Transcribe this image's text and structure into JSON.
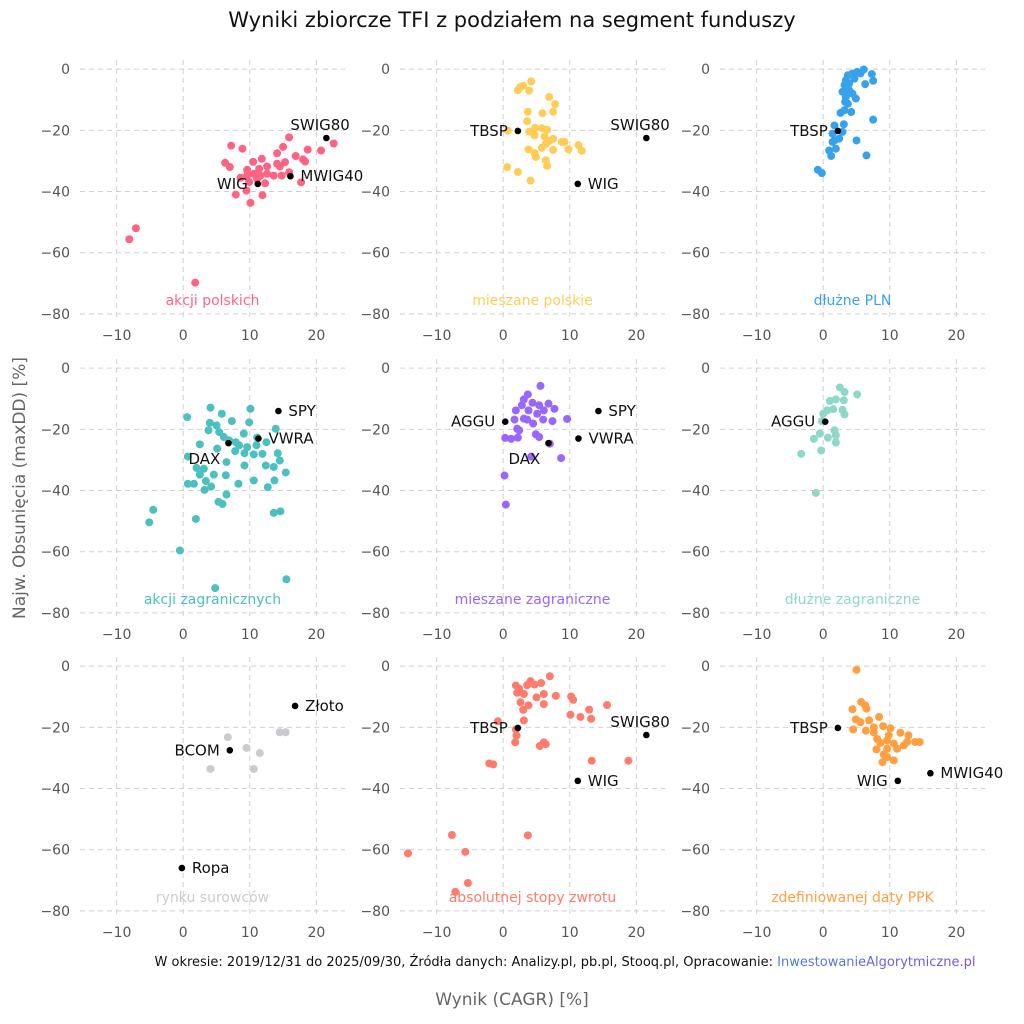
{
  "chart_data": [
    {
      "type": "scatter",
      "title": "akcji polskich",
      "color": "#ff6384",
      "x": [
        7.2,
        8.9,
        15.9,
        15,
        18.7,
        20.7,
        22.6,
        16.9,
        18,
        18.3,
        14.1,
        11.8,
        10.5,
        6.3,
        7,
        9.6,
        11.4,
        12.6,
        14.1,
        14.5,
        15.3,
        15.9,
        14.8,
        13.6,
        12.3,
        9.6,
        8.6,
        9.9,
        17.7,
        7.9,
        9.5,
        10.1,
        11.9,
        10.6,
        11.6,
        12.6,
        11.1,
        -8.1,
        -7.1,
        1.8
      ],
      "y": [
        -25,
        -26,
        -22.3,
        -25.4,
        -26.3,
        -26.6,
        -24.3,
        -28.4,
        -29.5,
        -30.2,
        -27.5,
        -29.3,
        -30.3,
        -30.6,
        -32,
        -32.9,
        -32.6,
        -31.8,
        -30.9,
        -31.8,
        -30.4,
        -33.7,
        -34.8,
        -34.8,
        -37.3,
        -34.8,
        -35.5,
        -36.9,
        -37,
        -41,
        -39.7,
        -43.7,
        -41.2,
        -34.2,
        -34.8,
        -34.2,
        -35.8,
        -55.6,
        -52,
        -69.8
      ],
      "benchmarks": [
        {
          "name": "SWIG80",
          "x": 21.5,
          "y": -22.5,
          "pos": "above"
        },
        {
          "name": "WIG",
          "x": 11.2,
          "y": -37.5,
          "pos": "left"
        },
        {
          "name": "MWIG40",
          "x": 16.1,
          "y": -35,
          "pos": "right"
        }
      ]
    },
    {
      "type": "scatter",
      "title": "mieszane polskie",
      "color": "#ffcd56",
      "x": [
        2.2,
        2.5,
        3,
        4.2,
        3.9,
        6.9,
        7.8,
        7.5,
        5.9,
        3.7,
        3.6,
        0.7,
        3.9,
        4.8,
        5.8,
        6.6,
        4.7,
        6.2,
        7.5,
        8.8,
        9.2,
        6.9,
        5.8,
        3.8,
        4.7,
        4.9,
        7.5,
        9.8,
        11.3,
        11.8,
        6.4,
        6.6,
        0.6,
        2.2,
        4.1,
        6.4
      ],
      "y": [
        -6.9,
        -6,
        -5.4,
        -4,
        -7,
        -9.1,
        -11.4,
        -13.9,
        -14.4,
        -13.9,
        -17,
        -20.1,
        -20.4,
        -19.2,
        -19.3,
        -19.8,
        -21.6,
        -21.9,
        -22.8,
        -23.8,
        -23.8,
        -23.5,
        -25.7,
        -26.2,
        -27.4,
        -28.7,
        -26.4,
        -26.2,
        -24.8,
        -26.7,
        -29.8,
        -31.6,
        -32,
        -33.6,
        -36.4,
        -24.4
      ],
      "benchmarks": [
        {
          "name": "TBSP",
          "x": 2.2,
          "y": -20.2,
          "pos": "left"
        },
        {
          "name": "SWIG80",
          "x": 21.5,
          "y": -22.5,
          "pos": "above"
        },
        {
          "name": "WIG",
          "x": 11.2,
          "y": -37.5,
          "pos": "right"
        }
      ]
    },
    {
      "type": "scatter",
      "title": "dłużne PLN",
      "color": "#36a2eb",
      "x": [
        6.1,
        5.1,
        3.7,
        3.4,
        4.7,
        7.3,
        7.5,
        6.3,
        3.2,
        2.9,
        3.9,
        3.4,
        4.9,
        3.7,
        4.2,
        2.6,
        3.2,
        7.5,
        1.7,
        3.1,
        1.4,
        2.9,
        2.4,
        1.4,
        5,
        1.9,
        0.9,
        1.2,
        6.5,
        -0.8,
        -0.2,
        4.4,
        5.6,
        3.9,
        4.4,
        3.3,
        1.7
      ],
      "y": [
        -0.1,
        -0.9,
        -2,
        -3.6,
        -3.1,
        -1.6,
        -3.8,
        -4.9,
        -5.2,
        -7.4,
        -6.9,
        -9.1,
        -9.6,
        -11.3,
        -14,
        -14.3,
        -13.4,
        -16.5,
        -18.4,
        -18,
        -21.1,
        -20.5,
        -22.7,
        -23.8,
        -23.3,
        -26,
        -26.6,
        -28.4,
        -28.2,
        -32.9,
        -34,
        -1.4,
        -1.4,
        -4.7,
        -8,
        -10.7,
        -23.3
      ],
      "benchmarks": [
        {
          "name": "TBSP",
          "x": 2.2,
          "y": -20.2,
          "pos": "left"
        }
      ]
    },
    {
      "type": "scatter",
      "title": "akcji zagranicznych",
      "color": "#4bc0c0",
      "x": [
        0.6,
        4.1,
        5.8,
        10.1,
        4,
        5,
        7.3,
        9.9,
        3.8,
        5.4,
        6.1,
        9.1,
        13.9,
        2.5,
        5.1,
        7.9,
        8.4,
        9.6,
        11,
        12.5,
        11.9,
        10.6,
        9.2,
        7.8,
        0.7,
        14.2,
        14.5,
        6.5,
        2,
        3.1,
        2.5,
        4.6,
        6.4,
        9.2,
        12.4,
        13.6,
        15.4,
        10.6,
        13.7,
        8.3,
        0.7,
        1.6,
        3.4,
        4.2,
        3.2,
        6.5,
        5.3,
        5.9,
        12.7,
        13.6,
        14.6,
        -4.5,
        -5.1,
        1.9,
        -0.5,
        15.5,
        4.8,
        6.9,
        11.1
      ],
      "y": [
        -16,
        -12.9,
        -14.9,
        -13.3,
        -17.9,
        -18.7,
        -17.3,
        -17.7,
        -20.3,
        -20.9,
        -22.5,
        -21.4,
        -19.8,
        -24.9,
        -26.3,
        -24.2,
        -25.2,
        -25.8,
        -25.2,
        -24.2,
        -28,
        -28.2,
        -27.8,
        -27.1,
        -28.9,
        -27.8,
        -30.2,
        -30.7,
        -32.6,
        -32.9,
        -34.8,
        -34.8,
        -35,
        -31.8,
        -31.8,
        -32.3,
        -34.1,
        -36.7,
        -36.7,
        -37.8,
        -37.8,
        -37.8,
        -36.9,
        -38.7,
        -39.8,
        -41.3,
        -43.7,
        -44.4,
        -38.9,
        -47.3,
        -46.8,
        -46.3,
        -50.4,
        -49.3,
        -59.6,
        -69,
        -71.9,
        -23.6,
        -22.7
      ],
      "benchmarks": [
        {
          "name": "SPY",
          "x": 14.3,
          "y": -14,
          "pos": "right"
        },
        {
          "name": "VWRA",
          "x": 11.3,
          "y": -23,
          "pos": "right"
        },
        {
          "name": "DAX",
          "x": 6.8,
          "y": -24.5,
          "pos": "below-left"
        }
      ]
    },
    {
      "type": "scatter",
      "title": "mieszane zagraniczne",
      "color": "#9966ff",
      "x": [
        5.6,
        3.7,
        3.1,
        2.8,
        4.4,
        5.4,
        6.8,
        7.7,
        1.9,
        3.8,
        6.1,
        1.7,
        3.1,
        4.5,
        6,
        7.4,
        9.6,
        2.1,
        2.4,
        4.9,
        5.4,
        0.3,
        1.2,
        2.2,
        7,
        4.2,
        8.7,
        0.2,
        0.4,
        5.1,
        3.6
      ],
      "y": [
        -5.8,
        -8.6,
        -10.2,
        -12.1,
        -11.3,
        -12.1,
        -11.6,
        -13.3,
        -13.8,
        -13.8,
        -13.8,
        -16.8,
        -16.5,
        -18.1,
        -16.8,
        -17.3,
        -16.6,
        -19.8,
        -20.3,
        -21.6,
        -22.5,
        -22.8,
        -23.1,
        -22.7,
        -24.7,
        -28.9,
        -29.4,
        -35.1,
        -44.6,
        -14.9,
        -16.8
      ],
      "benchmarks": [
        {
          "name": "AGGU",
          "x": 0.3,
          "y": -17.5,
          "pos": "left"
        },
        {
          "name": "SPY",
          "x": 14.3,
          "y": -14,
          "pos": "right"
        },
        {
          "name": "VWRA",
          "x": 11.3,
          "y": -23,
          "pos": "right"
        },
        {
          "name": "DAX",
          "x": 6.8,
          "y": -24.5,
          "pos": "below-left"
        }
      ]
    },
    {
      "type": "scatter",
      "title": "dłużne zagraniczne",
      "color": "#8ed8c8",
      "x": [
        2.5,
        3.2,
        5.1,
        1,
        1.9,
        3.1,
        0.6,
        1.5,
        2.9,
        3.2,
        0,
        -0.2,
        1.7,
        1.9,
        -0.5,
        -1.4,
        0.7,
        1.9,
        -0.3,
        -3.3,
        -1.1
      ],
      "y": [
        -6.3,
        -7.8,
        -8.6,
        -10.7,
        -10.2,
        -10.5,
        -13.8,
        -13.4,
        -13.6,
        -15.1,
        -14.9,
        -17.3,
        -20.3,
        -22,
        -21.4,
        -23.1,
        -22.7,
        -24.3,
        -26.9,
        -28,
        -40.8
      ],
      "benchmarks": [
        {
          "name": "AGGU",
          "x": 0.3,
          "y": -17.5,
          "pos": "left"
        }
      ]
    },
    {
      "type": "scatter",
      "title": "rynku surowców",
      "color": "#c9cbcf",
      "x": [
        6.7,
        9.5,
        11.5,
        4.1,
        10.6,
        14.5,
        15.4
      ],
      "y": [
        -23.2,
        -26.7,
        -28.4,
        -33.6,
        -33.6,
        -21.6,
        -21.6
      ],
      "benchmarks": [
        {
          "name": "Złoto",
          "x": 16.8,
          "y": -13,
          "pos": "right"
        },
        {
          "name": "BCOM",
          "x": 7,
          "y": -27.5,
          "pos": "left"
        },
        {
          "name": "Ropa",
          "x": -0.2,
          "y": -66,
          "pos": "right"
        }
      ]
    },
    {
      "type": "scatter",
      "title": "absolutnej stopy zwrotu",
      "color": "#ff7b6b",
      "x": [
        7,
        1.9,
        2.4,
        4.1,
        4.7,
        5.7,
        3.6,
        2.1,
        3.1,
        6.1,
        7.9,
        10.2,
        10.5,
        5,
        2.6,
        3.8,
        6.1,
        3,
        15.6,
        12.9,
        10.1,
        11.6,
        13.2,
        3.1,
        -0.8,
        1.9,
        2,
        1.8,
        6.1,
        6.4,
        5.5,
        -2.1,
        -1.5,
        13.3,
        18.8,
        3.7,
        -7.7,
        -5.7,
        -14.3,
        -5.3,
        -7.2
      ],
      "y": [
        -3.3,
        -6.3,
        -7.4,
        -4.9,
        -6,
        -5.5,
        -6.2,
        -8.7,
        -9.1,
        -9.1,
        -9.7,
        -9.9,
        -11,
        -10.2,
        -11.8,
        -12.8,
        -12.4,
        -14.3,
        -12.7,
        -14.2,
        -15.9,
        -16.6,
        -17.2,
        -17.7,
        -18,
        -20.7,
        -22.7,
        -24.9,
        -24.9,
        -25.5,
        -26.1,
        -31.8,
        -32.1,
        -30.9,
        -30.9,
        -55.3,
        -55.2,
        -60.7,
        -61.2,
        -70.9,
        -73.8
      ],
      "benchmarks": [
        {
          "name": "TBSP",
          "x": 2.2,
          "y": -20.2,
          "pos": "left"
        },
        {
          "name": "SWIG80",
          "x": 21.5,
          "y": -22.5,
          "pos": "above"
        },
        {
          "name": "WIG",
          "x": 11.2,
          "y": -37.5,
          "pos": "right"
        }
      ]
    },
    {
      "type": "scatter",
      "title": "zdefiniowanej daty PPK",
      "color": "#ff9f40",
      "x": [
        5,
        5.7,
        6.3,
        6.5,
        4.4,
        8.4,
        4.9,
        5.6,
        6.9,
        4.5,
        6.4,
        7.6,
        9,
        10.1,
        11.6,
        12.8,
        14.5,
        13.8,
        12.6,
        8.1,
        8.6,
        9.6,
        10.6,
        9.6,
        11.1,
        8,
        9.1,
        9.6,
        10.6,
        8.9,
        12.1,
        9.85,
        7.6
      ],
      "y": [
        -1.2,
        -11.7,
        -12.8,
        -13.9,
        -14.1,
        -16.6,
        -17.4,
        -18.3,
        -17.7,
        -20.7,
        -21.1,
        -21.6,
        -19.6,
        -20.3,
        -21.8,
        -22.6,
        -24.8,
        -24.8,
        -24.8,
        -23.8,
        -25.1,
        -24.3,
        -25.3,
        -27,
        -27,
        -27.2,
        -28.9,
        -29.7,
        -30.8,
        -31.4,
        -25.9,
        -22.6,
        -20
      ],
      "benchmarks": [
        {
          "name": "TBSP",
          "x": 2.2,
          "y": -20.2,
          "pos": "left"
        },
        {
          "name": "WIG",
          "x": 11.2,
          "y": -37.5,
          "pos": "left"
        },
        {
          "name": "MWIG40",
          "x": 16.1,
          "y": -35,
          "pos": "right"
        }
      ]
    }
  ],
  "axes": {
    "xlim": [
      -15.5,
      24.3
    ],
    "ylim": [
      -82,
      3
    ],
    "xticks": [
      -10,
      0,
      10,
      20
    ],
    "yticks": [
      0,
      -20,
      -40,
      -60,
      -80
    ],
    "xlabel": "Wynik (CAGR) [%]",
    "ylabel": "Najw. Obsunięcia (maxDD) [%]",
    "grid": true,
    "benchmark_color": "#000000"
  },
  "title": "Wyniki zbiorcze TFI z podziałem na segment funduszy",
  "footer": {
    "text": "W okresie: 2019/12/31 do 2025/09/30, Źródła danych: Analizy.pl, pb.pl, Stooq.pl, Opracowanie: ",
    "link": "InwestowanieAlgorytmiczne.pl"
  }
}
